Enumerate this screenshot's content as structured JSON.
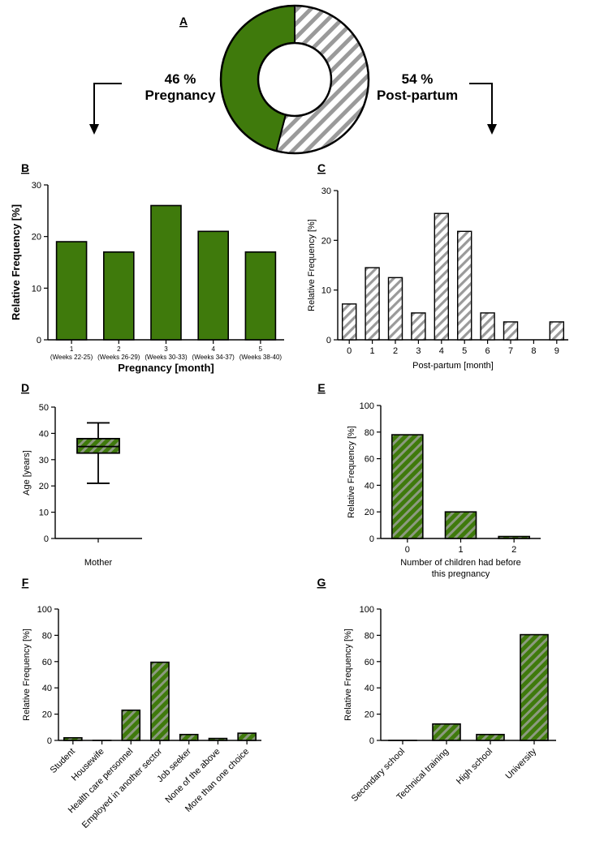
{
  "colors": {
    "green": "#3f7a0c",
    "stripe_gray": "#9a9a9a",
    "white": "#ffffff",
    "black": "#000000"
  },
  "chart_data": [
    {
      "id": "A",
      "type": "pie",
      "panel": "A",
      "slices": [
        {
          "label": "Pregnancy",
          "value": 46,
          "display": "46 %",
          "style": "solid-green"
        },
        {
          "label": "Post-partum",
          "value": 54,
          "display": "54 %",
          "style": "gray-hatch"
        }
      ]
    },
    {
      "id": "B",
      "type": "bar",
      "panel": "B",
      "categories": [
        "1",
        "2",
        "3",
        "4",
        "5"
      ],
      "sublabels": [
        "(Weeks 22-25)",
        "(Weeks 26-29)",
        "(Weeks 30-33)",
        "(Weeks 34-37)",
        "(Weeks 38-40)"
      ],
      "values": [
        19,
        17,
        26,
        21,
        17
      ],
      "ylim": [
        0,
        30
      ],
      "yticks": [
        0,
        10,
        20,
        30
      ],
      "ylabel": "Relative Frequency [%]",
      "xlabel": "Pregnancy [month]"
    },
    {
      "id": "C",
      "type": "bar",
      "panel": "C",
      "categories": [
        "0",
        "1",
        "2",
        "3",
        "4",
        "5",
        "6",
        "7",
        "8",
        "9"
      ],
      "values": [
        7.2,
        14.5,
        12.5,
        5.4,
        25.4,
        21.8,
        5.4,
        3.6,
        0,
        3.6
      ],
      "ylim": [
        0,
        30
      ],
      "yticks": [
        0,
        10,
        20,
        30
      ],
      "ylabel": "Relative Frequency [%]",
      "xlabel": "Post-partum [month]"
    },
    {
      "id": "D",
      "type": "box",
      "panel": "D",
      "category": "Mother",
      "min": 21,
      "q1": 32.5,
      "median": 35,
      "q3": 38,
      "max": 44,
      "ylim": [
        0,
        50
      ],
      "yticks": [
        0,
        10,
        20,
        30,
        40,
        50
      ],
      "ylabel": "Age [years]"
    },
    {
      "id": "E",
      "type": "bar",
      "panel": "E",
      "categories": [
        "0",
        "1",
        "2"
      ],
      "values": [
        78,
        20,
        1.5
      ],
      "ylim": [
        0,
        100
      ],
      "yticks": [
        0,
        20,
        40,
        60,
        80,
        100
      ],
      "ylabel": "Relative Frequency [%]",
      "xlabel": [
        "Number of children had before",
        "this pregnancy"
      ]
    },
    {
      "id": "F",
      "type": "bar",
      "panel": "F",
      "categories": [
        "Student",
        "Housewife",
        "Health care personnel",
        "Employed in another sector",
        "Job seeker",
        "None of the above",
        "More than one choice"
      ],
      "values": [
        2,
        0,
        23,
        59.5,
        4.5,
        1.5,
        5.5
      ],
      "ylim": [
        0,
        100
      ],
      "yticks": [
        0,
        20,
        40,
        60,
        80,
        100
      ],
      "ylabel": "Relative Frequency [%]"
    },
    {
      "id": "G",
      "type": "bar",
      "panel": "G",
      "categories": [
        "Secondary school",
        "Technical training",
        "High school",
        "University"
      ],
      "values": [
        0,
        12.5,
        4.5,
        80.5
      ],
      "ylim": [
        0,
        100
      ],
      "yticks": [
        0,
        20,
        40,
        60,
        80,
        100
      ],
      "ylabel": "Relative Frequency [%]"
    }
  ]
}
